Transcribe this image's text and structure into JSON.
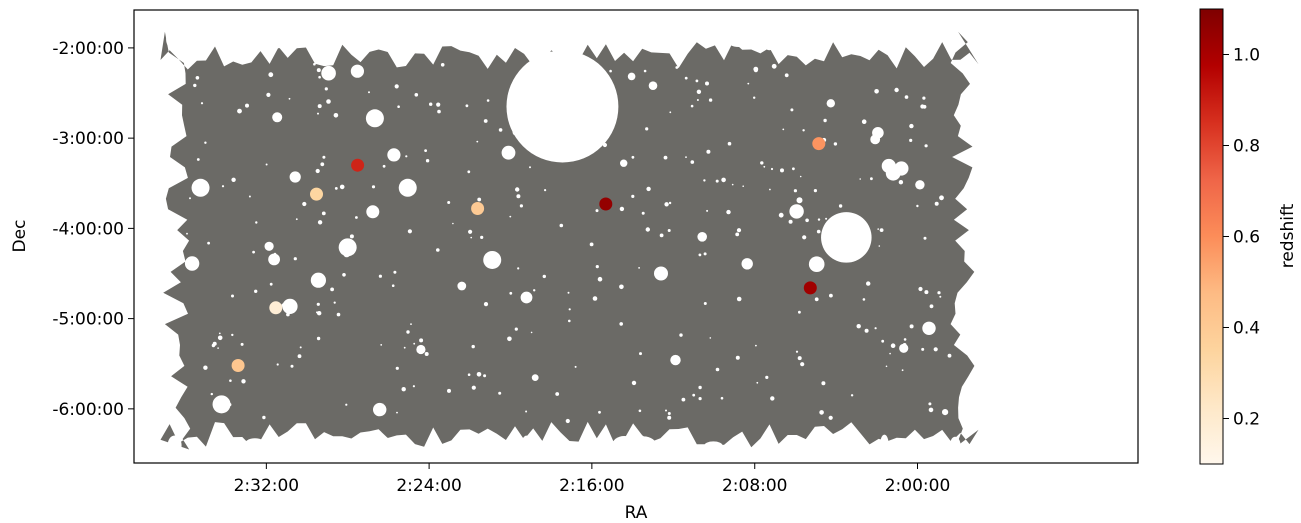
{
  "chart_data": {
    "type": "scatter",
    "title": "",
    "xlabel": "RA",
    "ylabel": "Dec",
    "x_axis": {
      "unit": "RA (h:m:s)",
      "inverted": true,
      "range_hours": [
        2.6417,
        1.8194
      ],
      "ticks": [
        {
          "value": 2.5333,
          "label": "2:32:00"
        },
        {
          "value": 2.4,
          "label": "2:24:00"
        },
        {
          "value": 2.2667,
          "label": "2:16:00"
        },
        {
          "value": 2.1333,
          "label": "2:08:00"
        },
        {
          "value": 2.0,
          "label": "2:00:00"
        }
      ]
    },
    "y_axis": {
      "unit": "Dec (d:m:s)",
      "range_deg": [
        -6.6,
        -1.58
      ],
      "ticks": [
        {
          "value": -2.0,
          "label": "-2:00:00"
        },
        {
          "value": -3.0,
          "label": "-3:00:00"
        },
        {
          "value": -4.0,
          "label": "-4:00:00"
        },
        {
          "value": -5.0,
          "label": "-5:00:00"
        },
        {
          "value": -6.0,
          "label": "-6:00:00"
        }
      ]
    },
    "coverage": {
      "name": "survey footprint",
      "color": "#6b6a66",
      "bounds_ra_hours": [
        1.95,
        2.62
      ],
      "bounds_dec_deg": [
        -6.45,
        -1.82
      ],
      "large_holes": [
        {
          "ra": 2.2908,
          "dec": -2.65,
          "radius_deg": 0.62
        },
        {
          "ra": 2.0583,
          "dec": -4.1,
          "radius_deg": 0.28
        }
      ]
    },
    "points": [
      {
        "ra": 2.5564,
        "dec": -5.52,
        "redshift": 0.42
      },
      {
        "ra": 2.5256,
        "dec": -4.88,
        "redshift": 0.18
      },
      {
        "ra": 2.4922,
        "dec": -3.62,
        "redshift": 0.34
      },
      {
        "ra": 2.4586,
        "dec": -3.3,
        "redshift": 0.88
      },
      {
        "ra": 2.3603,
        "dec": -3.78,
        "redshift": 0.4
      },
      {
        "ra": 2.2553,
        "dec": -3.73,
        "redshift": 1.05
      },
      {
        "ra": 2.0808,
        "dec": -3.06,
        "redshift": 0.58
      },
      {
        "ra": 2.0878,
        "dec": -4.66,
        "redshift": 1.02
      }
    ],
    "colorbar": {
      "label": "redshift",
      "colormap": "OrRd",
      "range": [
        0.1,
        1.1
      ],
      "ticks": [
        {
          "value": 0.2,
          "label": "0.2"
        },
        {
          "value": 0.4,
          "label": "0.4"
        },
        {
          "value": 0.6,
          "label": "0.6"
        },
        {
          "value": 0.8,
          "label": "0.8"
        },
        {
          "value": 1.0,
          "label": "1.0"
        }
      ],
      "colors": [
        "#fff7ec",
        "#fee8c8",
        "#fdd49e",
        "#fdbb84",
        "#fc8d59",
        "#ef6548",
        "#d7301f",
        "#b30000",
        "#7f0000"
      ]
    },
    "grid": false,
    "legend": "none"
  }
}
